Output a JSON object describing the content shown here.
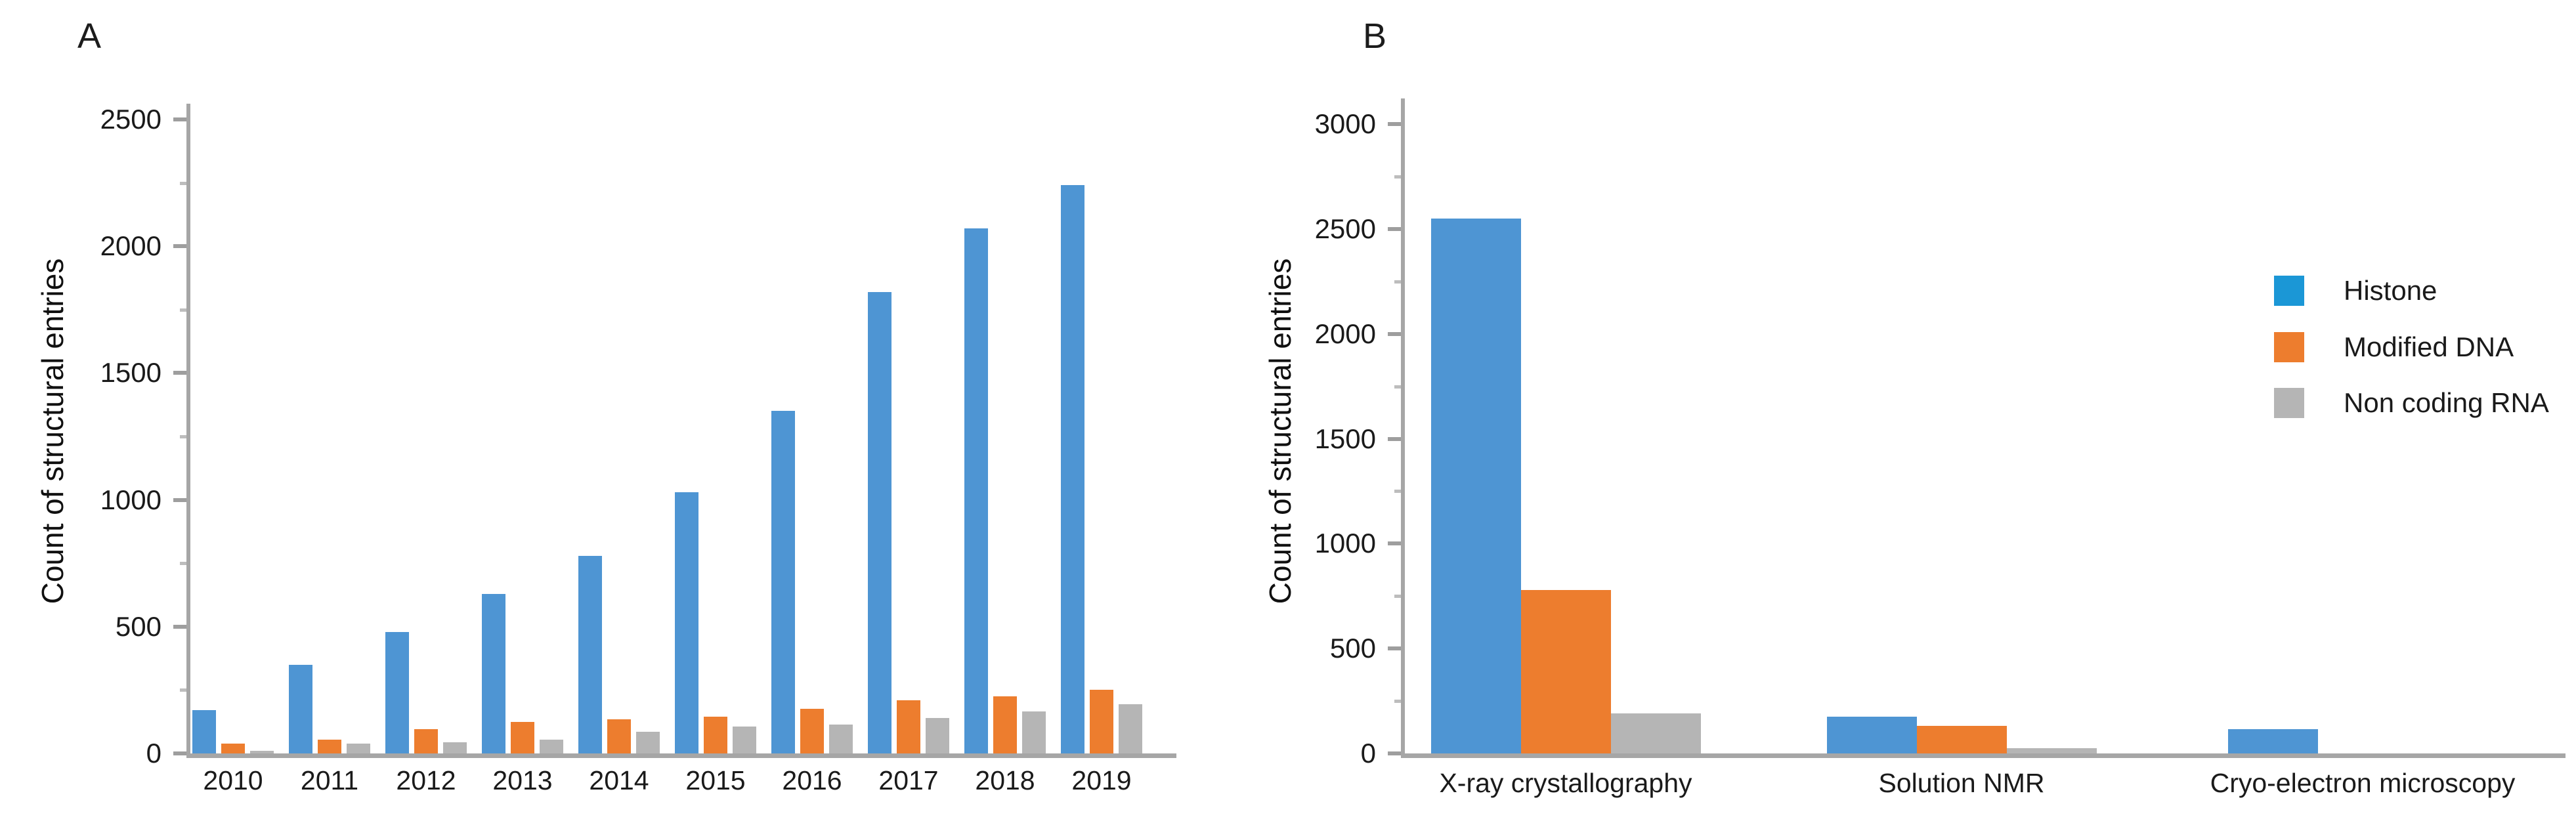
{
  "figure": {
    "panels": [
      {
        "id": "A",
        "label": "A",
        "ylabel": "Count of structural entries"
      },
      {
        "id": "B",
        "label": "B",
        "ylabel": "Count of structural entries"
      }
    ]
  },
  "legend": {
    "position": "right-middle",
    "items": [
      {
        "label": "Histone",
        "color": "#1b97d6"
      },
      {
        "label": "Modified DNA",
        "color": "#ed7d2e"
      },
      {
        "label": "Non coding RNA",
        "color": "#b5b5b5"
      }
    ]
  },
  "chart_data": [
    {
      "panel": "A",
      "type": "bar",
      "title": "",
      "xlabel": "",
      "ylabel": "Count of structural entries",
      "categories": [
        "2010",
        "2011",
        "2012",
        "2013",
        "2014",
        "2015",
        "2016",
        "2017",
        "2018",
        "2019"
      ],
      "series": [
        {
          "name": "Histone",
          "color": "#4e95d3",
          "values": [
            170,
            350,
            480,
            630,
            780,
            1030,
            1350,
            1820,
            2070,
            2240
          ]
        },
        {
          "name": "Modified DNA",
          "color": "#ed7d2e",
          "values": [
            40,
            55,
            95,
            125,
            135,
            145,
            175,
            210,
            225,
            250
          ]
        },
        {
          "name": "Non coding RNA",
          "color": "#b5b5b5",
          "values": [
            10,
            40,
            45,
            55,
            85,
            105,
            115,
            140,
            165,
            195
          ]
        }
      ],
      "ylim": [
        0,
        2500
      ],
      "yticks": [
        0,
        500,
        1000,
        1500,
        2000,
        2500
      ],
      "yticks_minor": [
        250,
        750,
        1250,
        1750,
        2250
      ],
      "grid": false,
      "legend_visible": false
    },
    {
      "panel": "B",
      "type": "bar",
      "title": "",
      "xlabel": "",
      "ylabel": "Count of structural entries",
      "categories": [
        "X-ray crystallography",
        "Solution NMR",
        "Cryo-electron microscopy"
      ],
      "series": [
        {
          "name": "Histone",
          "color": "#4e95d3",
          "values": [
            2550,
            175,
            115
          ]
        },
        {
          "name": "Modified DNA",
          "color": "#ed7d2e",
          "values": [
            780,
            130,
            0
          ]
        },
        {
          "name": "Non coding RNA",
          "color": "#b5b5b5",
          "values": [
            190,
            25,
            0
          ]
        }
      ],
      "ylim": [
        0,
        3000
      ],
      "yticks": [
        0,
        500,
        1000,
        1500,
        2000,
        2500,
        3000
      ],
      "yticks_minor": [
        250,
        750,
        1250,
        1750,
        2250,
        2750
      ],
      "grid": false,
      "legend_visible": true
    }
  ]
}
